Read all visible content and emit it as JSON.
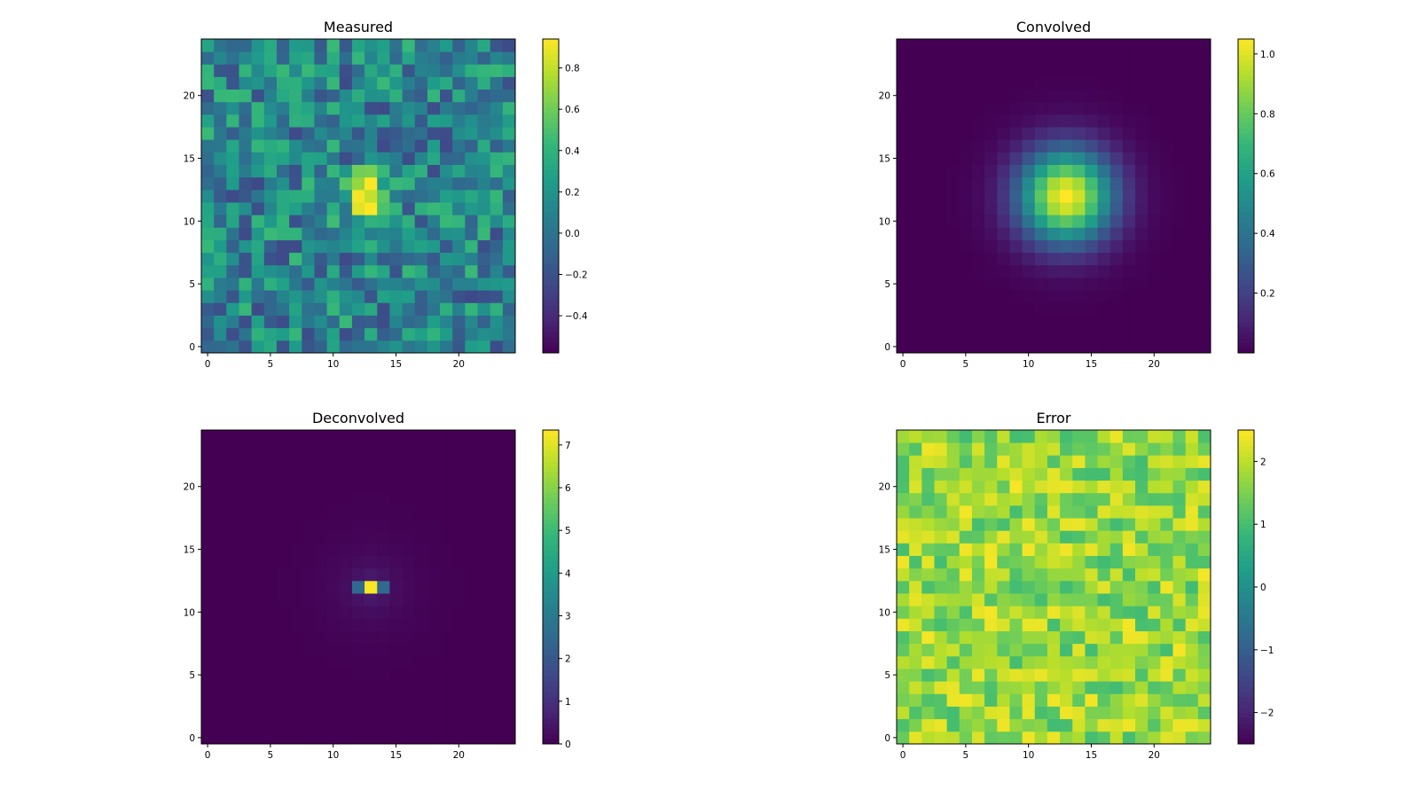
{
  "figure": {
    "panels": [
      {
        "title": "Measured",
        "colorbar_ticks": [
          "0.8",
          "0.6",
          "0.4",
          "0.2",
          "0.0",
          "−0.2",
          "−0.4"
        ]
      },
      {
        "title": "Convolved",
        "colorbar_ticks": [
          "1.0",
          "0.8",
          "0.6",
          "0.4",
          "0.2"
        ]
      },
      {
        "title": "Deconvolved",
        "colorbar_ticks": [
          "7",
          "6",
          "5",
          "4",
          "3",
          "2",
          "1",
          "0"
        ]
      },
      {
        "title": "Error",
        "colorbar_ticks": [
          "2",
          "1",
          "0",
          "−1",
          "−2"
        ]
      }
    ]
  },
  "chart_data": [
    {
      "type": "heatmap",
      "title": "Measured",
      "colormap": "viridis",
      "grid_size": [
        25,
        25
      ],
      "x_ticks": [
        0,
        5,
        10,
        15,
        20
      ],
      "y_ticks": [
        0,
        5,
        10,
        15,
        20
      ],
      "xlim": [
        -0.5,
        24.5
      ],
      "ylim": [
        -0.5,
        24.5
      ],
      "colorbar": {
        "min": -0.58,
        "max": 0.94,
        "ticks": [
          -0.4,
          -0.2,
          0.0,
          0.2,
          0.4,
          0.6,
          0.8
        ]
      },
      "description": "Noisy field (values ~ -0.5 to 0.3) with a bright peak around (13, 12)",
      "model": {
        "kind": "noise_plus_peak",
        "center": [
          13,
          12
        ],
        "peak": 0.85,
        "sigma": 1.3,
        "noise_mean": 0.1,
        "noise_amp": 0.35,
        "seed": 11
      }
    },
    {
      "type": "heatmap",
      "title": "Convolved",
      "colormap": "viridis",
      "grid_size": [
        25,
        25
      ],
      "x_ticks": [
        0,
        5,
        10,
        15,
        20
      ],
      "y_ticks": [
        0,
        5,
        10,
        15,
        20
      ],
      "xlim": [
        -0.5,
        24.5
      ],
      "ylim": [
        -0.5,
        24.5
      ],
      "colorbar": {
        "min": 0.0,
        "max": 1.05,
        "ticks": [
          0.2,
          0.4,
          0.6,
          0.8,
          1.0
        ]
      },
      "description": "Smooth Gaussian blob centered at (13, 12), peak about 1.05",
      "model": {
        "kind": "gaussian",
        "center": [
          13,
          12
        ],
        "peak": 1.05,
        "sigma": 2.6
      }
    },
    {
      "type": "heatmap",
      "title": "Deconvolved",
      "colormap": "viridis",
      "grid_size": [
        25,
        25
      ],
      "x_ticks": [
        0,
        5,
        10,
        15,
        20
      ],
      "y_ticks": [
        0,
        5,
        10,
        15,
        20
      ],
      "xlim": [
        -0.5,
        24.5
      ],
      "ylim": [
        -0.5,
        24.5
      ],
      "colorbar": {
        "min": 0.0,
        "max": 7.35,
        "ticks": [
          0,
          1,
          2,
          3,
          4,
          5,
          6,
          7
        ]
      },
      "description": "Sharp spike at (13, 12) with value about 7.3, rest near 0",
      "model": {
        "kind": "spike",
        "center": [
          13,
          12
        ],
        "peak": 7.3,
        "neighbors": 2.5,
        "halo": 0.9,
        "falloff": 1.6
      }
    },
    {
      "type": "heatmap",
      "title": "Error",
      "colormap": "viridis",
      "grid_size": [
        25,
        25
      ],
      "x_ticks": [
        0,
        5,
        10,
        15,
        20
      ],
      "y_ticks": [
        0,
        5,
        10,
        15,
        20
      ],
      "xlim": [
        -0.5,
        24.5
      ],
      "ylim": [
        -0.5,
        24.5
      ],
      "colorbar": {
        "min": -2.5,
        "max": 2.5,
        "ticks": [
          -2,
          -1,
          0,
          1,
          2
        ]
      },
      "description": "Uniformly high positive error (~0.8 to 2.5) across the grid",
      "model": {
        "kind": "noise",
        "noise_mean": 1.7,
        "noise_amp": 0.75,
        "seed": 29
      }
    }
  ]
}
